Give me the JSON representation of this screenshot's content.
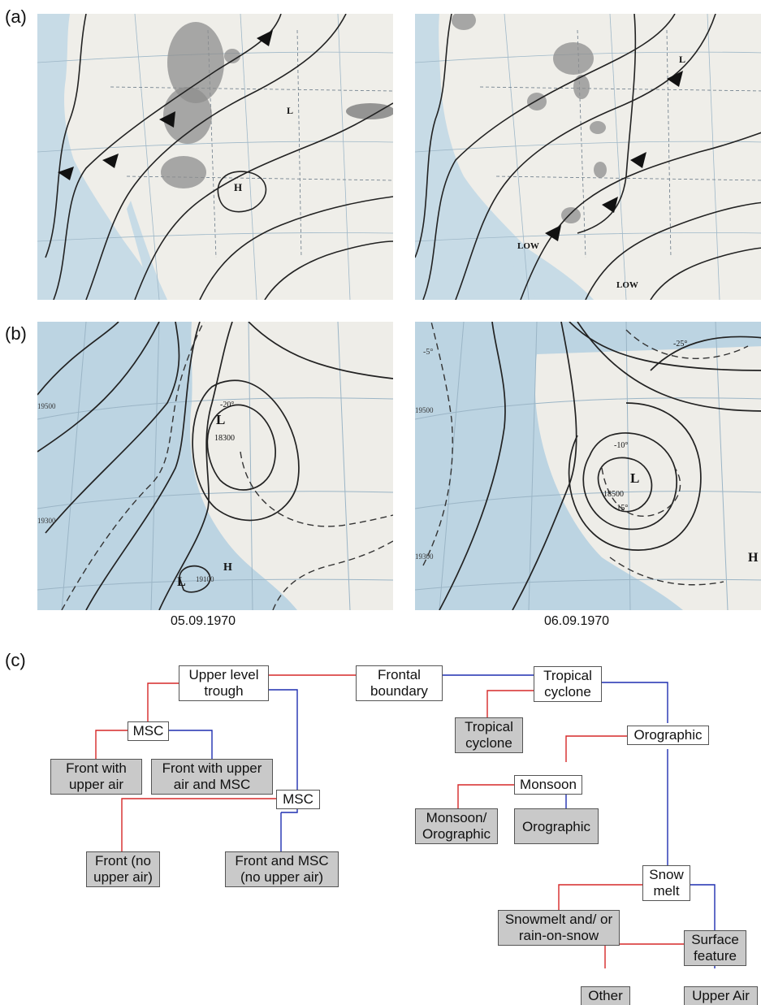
{
  "panels": {
    "a": "(a)",
    "b": "(b)",
    "c": "(c)"
  },
  "dates": {
    "left": "05.09.1970",
    "right": "06.09.1970"
  },
  "maps": {
    "a_left": {
      "labels": {
        "H": "H",
        "L": "L"
      }
    },
    "a_right": {
      "labels": {
        "L": "L",
        "LOW1": "LOW",
        "LOW2": "LOW"
      }
    },
    "b_left": {
      "labels": {
        "L1": "L",
        "H": "H",
        "L2": "L",
        "c1": "18300",
        "c2": "19500",
        "c3": "19300",
        "c4": "19100",
        "t1": "-20°"
      }
    },
    "b_right": {
      "labels": {
        "L": "L",
        "H": "H",
        "c1": "18500",
        "c2": "19500",
        "c3": "19300",
        "t1": "-25°",
        "t2": "-10°",
        "t3": "-15°",
        "t4": "-5°"
      }
    }
  },
  "tree": {
    "upper_trough": "Upper level\ntrough",
    "frontal": "Frontal\nboundary",
    "tropical_root": "Tropical\ncyclone",
    "msc1": "MSC",
    "front_upper": "Front with\nupper air",
    "front_upper_msc": "Front with upper\nair and MSC",
    "msc2": "MSC",
    "front_no_upper": "Front (no\nupper air)",
    "front_msc_no_upper": "Front and MSC\n(no upper air)",
    "tropical_leaf": "Tropical\ncyclone",
    "orographic": "Orographic",
    "monsoon": "Monsoon",
    "monsoon_oro": "Monsoon/\nOrographic",
    "orographic_leaf": "Orographic",
    "snow_melt": "Snow\nmelt",
    "snowmelt_ros": "Snowmelt and/ or\nrain-on-snow",
    "surface": "Surface\nfeature",
    "other": "Other",
    "upper_air": "Upper Air",
    "colors": {
      "red_branch": "#d62828",
      "blue_branch": "#1f2fb0"
    }
  }
}
